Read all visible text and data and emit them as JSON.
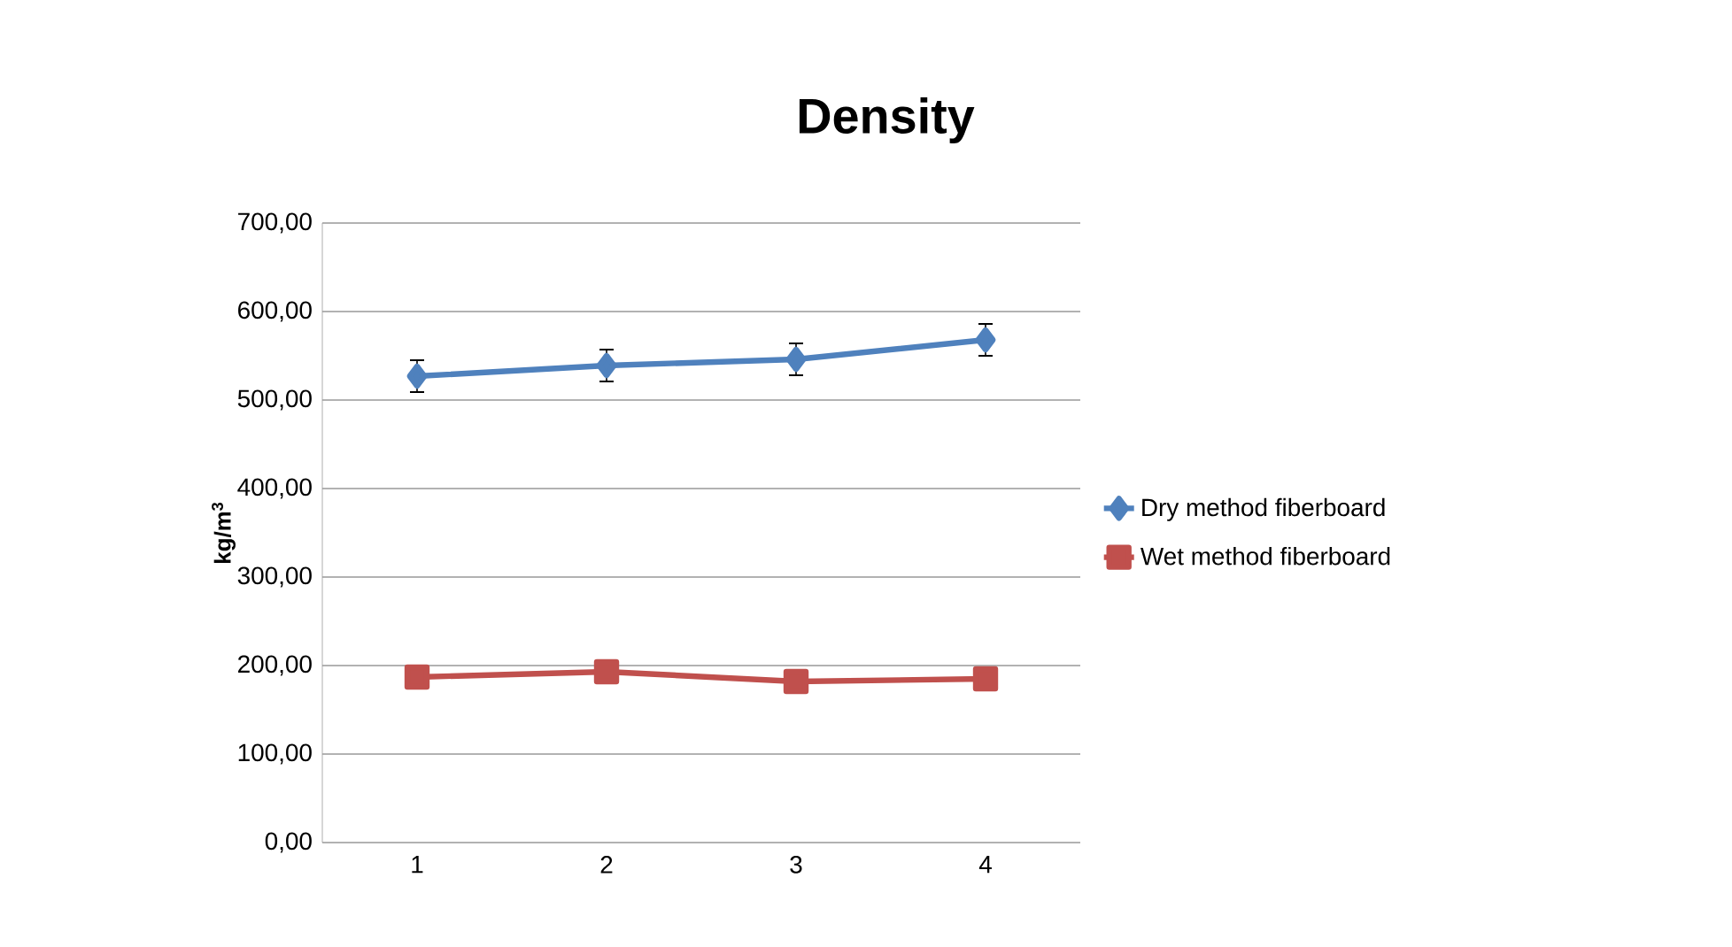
{
  "chart_data": {
    "type": "line",
    "title": "Density",
    "ylabel": "kg/m$^{3}$",
    "categories": [
      "1",
      "2",
      "3",
      "4"
    ],
    "series": [
      {
        "name": "Dry method fiberboard",
        "color": "#4f81bd",
        "marker": "diamond",
        "values": [
          527,
          539,
          546,
          568
        ],
        "errors": [
          18,
          18,
          18,
          18
        ]
      },
      {
        "name": "Wet method fiberboard",
        "color": "#c0504d",
        "marker": "square",
        "values": [
          187,
          193,
          182,
          185
        ]
      }
    ],
    "ylim": [
      0,
      700
    ],
    "yticks": [
      {
        "value": 0,
        "label": "0,00"
      },
      {
        "value": 100,
        "label": "100,00"
      },
      {
        "value": 200,
        "label": "200,00"
      },
      {
        "value": 300,
        "label": "300,00"
      },
      {
        "value": 400,
        "label": "400,00"
      },
      {
        "value": 500,
        "label": "500,00"
      },
      {
        "value": 600,
        "label": "600,00"
      },
      {
        "value": 700,
        "label": "700,00"
      }
    ],
    "grid": "y",
    "legend": "right"
  }
}
